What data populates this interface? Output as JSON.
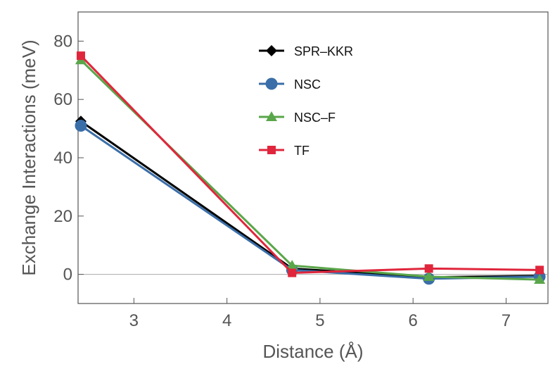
{
  "chart_data": {
    "type": "line",
    "xlabel": "Distance (Å)",
    "ylabel": "Exchange Interactions (meV)",
    "xlim": [
      2.4,
      7.45
    ],
    "ylim": [
      -10,
      90
    ],
    "xticks": [
      3,
      4,
      5,
      6,
      7
    ],
    "yticks": [
      0,
      20,
      40,
      60,
      80
    ],
    "zero_line": true,
    "grid": false,
    "legend_position": "top-center",
    "x": [
      2.43,
      4.7,
      6.17,
      7.36
    ],
    "series": [
      {
        "name": "SPR–KKR",
        "color": "#000000",
        "marker": "diamond",
        "values": [
          52.5,
          2.0,
          -1.0,
          -0.5
        ]
      },
      {
        "name": "NSC",
        "color": "#3a6ea8",
        "marker": "circle",
        "values": [
          51.0,
          1.5,
          -1.5,
          -0.8
        ]
      },
      {
        "name": "NSC–F",
        "color": "#5aa64a",
        "marker": "triangle",
        "values": [
          73.5,
          3.0,
          -0.8,
          -1.8
        ]
      },
      {
        "name": "TF",
        "color": "#e0263c",
        "marker": "square",
        "values": [
          75.0,
          0.5,
          2.0,
          1.5
        ]
      }
    ]
  }
}
